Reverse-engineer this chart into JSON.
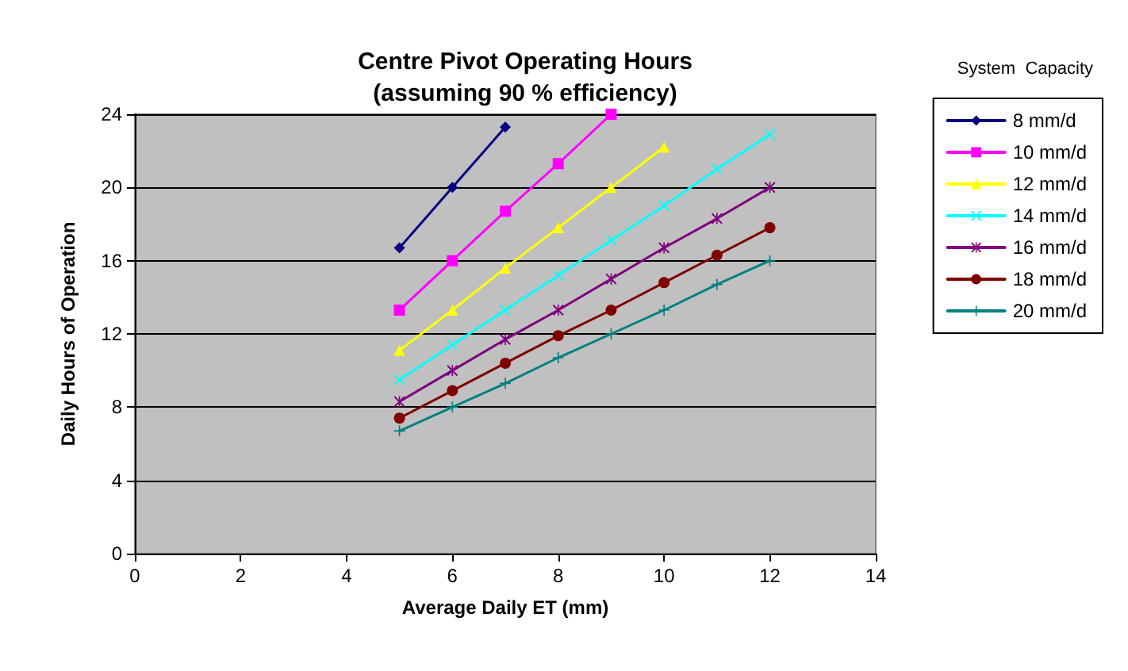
{
  "chart_data": {
    "type": "line",
    "title": "Centre Pivot Operating Hours\n(assuming 90 % efficiency)",
    "xlabel": "Average Daily ET (mm)",
    "ylabel": "Daily Hours of Operation",
    "legend_title": "System  Capacity",
    "xlim": [
      0,
      14
    ],
    "xticks": [
      0,
      2,
      4,
      6,
      8,
      10,
      12,
      14
    ],
    "ylim": [
      0,
      24
    ],
    "yticks": [
      0,
      4,
      8,
      12,
      16,
      20,
      24
    ],
    "grid": "y",
    "legend": "right",
    "line_style": "solid",
    "series": [
      {
        "name": "8 mm/d",
        "color": "#000080",
        "marker": "diamond",
        "x": [
          5,
          6,
          7
        ],
        "values": [
          16.7,
          20,
          23.3
        ]
      },
      {
        "name": "10 mm/d",
        "color": "#ff00ff",
        "marker": "square",
        "x": [
          5,
          6,
          7,
          8,
          9
        ],
        "values": [
          13.3,
          16,
          18.7,
          21.3,
          24
        ]
      },
      {
        "name": "12 mm/d",
        "color": "#ffff00",
        "marker": "triangle",
        "x": [
          5,
          6,
          7,
          8,
          9,
          10
        ],
        "values": [
          11.1,
          13.3,
          15.6,
          17.8,
          20,
          22.2
        ]
      },
      {
        "name": "14 mm/d",
        "color": "#00ffff",
        "marker": "cross",
        "x": [
          5,
          6,
          7,
          8,
          9,
          10,
          11,
          12
        ],
        "values": [
          9.5,
          11.4,
          13.3,
          15.2,
          17.1,
          19,
          21,
          22.9
        ]
      },
      {
        "name": "16 mm/d",
        "color": "#800080",
        "marker": "star",
        "x": [
          5,
          6,
          7,
          8,
          9,
          10,
          11,
          12
        ],
        "values": [
          8.3,
          10,
          11.7,
          13.3,
          15,
          16.7,
          18.3,
          20
        ]
      },
      {
        "name": "18 mm/d",
        "color": "#800000",
        "marker": "circle",
        "x": [
          5,
          6,
          7,
          8,
          9,
          10,
          11,
          12
        ],
        "values": [
          7.4,
          8.9,
          10.4,
          11.9,
          13.3,
          14.8,
          16.3,
          17.8
        ]
      },
      {
        "name": "20 mm/d",
        "color": "#008080",
        "marker": "plus",
        "x": [
          5,
          6,
          7,
          8,
          9,
          10,
          11,
          12
        ],
        "values": [
          6.7,
          8,
          9.3,
          10.7,
          12,
          13.3,
          14.7,
          16
        ]
      }
    ]
  }
}
